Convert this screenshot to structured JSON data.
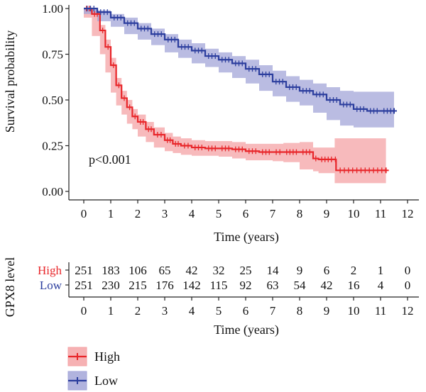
{
  "chart_data": {
    "type": "line",
    "subtype": "kaplan-meier",
    "xlabel": "Time (years)",
    "ylabel": "Survival probability",
    "xlim": [
      0,
      12
    ],
    "ylim": [
      0,
      1
    ],
    "x_ticks": [
      "0",
      "1",
      "2",
      "3",
      "4",
      "5",
      "6",
      "7",
      "8",
      "9",
      "10",
      "11",
      "12"
    ],
    "y_ticks": [
      "0.00",
      "0.25",
      "0.50",
      "0.75",
      "1.00"
    ],
    "annotation": "p<0.001",
    "legend": {
      "position": "bottom-left",
      "entries": [
        "High",
        "Low"
      ]
    },
    "risk_table": {
      "title": "GPX8 level",
      "xlabel": "Time (years)",
      "time_points": [
        0,
        1,
        2,
        3,
        4,
        5,
        6,
        7,
        8,
        9,
        10,
        11,
        12
      ],
      "rows": [
        {
          "label": "High",
          "values": [
            "251",
            "183",
            "106",
            "65",
            "42",
            "32",
            "25",
            "14",
            "9",
            "6",
            "2",
            "1",
            "0"
          ]
        },
        {
          "label": "Low",
          "values": [
            "251",
            "230",
            "215",
            "176",
            "142",
            "115",
            "92",
            "63",
            "54",
            "42",
            "16",
            "4",
            "0"
          ]
        }
      ]
    },
    "series": [
      {
        "name": "High",
        "color": "#e8262a",
        "band_color": "#f4a3a6",
        "x": [
          0,
          0.3,
          0.6,
          0.8,
          1.0,
          1.2,
          1.4,
          1.6,
          1.8,
          2.0,
          2.3,
          2.6,
          3.0,
          3.3,
          3.6,
          4.0,
          4.5,
          5.0,
          5.5,
          6.0,
          6.5,
          7.0,
          7.4,
          8.0,
          8.5,
          8.7,
          9.3,
          9.35,
          11.2
        ],
        "y": [
          1.0,
          0.97,
          0.88,
          0.79,
          0.69,
          0.58,
          0.51,
          0.46,
          0.41,
          0.38,
          0.34,
          0.31,
          0.28,
          0.26,
          0.25,
          0.24,
          0.235,
          0.235,
          0.23,
          0.22,
          0.215,
          0.215,
          0.215,
          0.215,
          0.18,
          0.175,
          0.175,
          0.115,
          0.115
        ],
        "lower": [
          1.0,
          0.95,
          0.85,
          0.75,
          0.65,
          0.54,
          0.47,
          0.42,
          0.37,
          0.34,
          0.3,
          0.27,
          0.24,
          0.22,
          0.21,
          0.2,
          0.195,
          0.195,
          0.19,
          0.18,
          0.17,
          0.17,
          0.165,
          0.16,
          0.12,
          0.11,
          0.1,
          0.045,
          0.045
        ],
        "upper": [
          1.0,
          0.99,
          0.91,
          0.83,
          0.73,
          0.62,
          0.55,
          0.5,
          0.45,
          0.42,
          0.38,
          0.35,
          0.32,
          0.3,
          0.29,
          0.28,
          0.275,
          0.275,
          0.27,
          0.26,
          0.26,
          0.26,
          0.265,
          0.27,
          0.24,
          0.24,
          0.29,
          0.29,
          0.29
        ]
      },
      {
        "name": "Low",
        "color": "#2c3e9e",
        "band_color": "#a3a6d8",
        "x": [
          0,
          0.5,
          1.0,
          1.5,
          2.0,
          2.5,
          3.0,
          3.5,
          4.0,
          4.5,
          5.0,
          5.5,
          6.0,
          6.5,
          7.0,
          7.5,
          8.0,
          8.5,
          9.0,
          9.5,
          10.0,
          10.5,
          11.0,
          11.5
        ],
        "y": [
          1.0,
          0.98,
          0.95,
          0.92,
          0.89,
          0.86,
          0.83,
          0.79,
          0.77,
          0.74,
          0.72,
          0.7,
          0.67,
          0.64,
          0.6,
          0.57,
          0.55,
          0.53,
          0.5,
          0.475,
          0.45,
          0.44,
          0.44,
          0.44
        ],
        "lower": [
          1.0,
          0.97,
          0.93,
          0.9,
          0.86,
          0.83,
          0.8,
          0.76,
          0.73,
          0.7,
          0.68,
          0.65,
          0.62,
          0.59,
          0.55,
          0.52,
          0.49,
          0.47,
          0.43,
          0.39,
          0.36,
          0.35,
          0.35,
          0.35
        ],
        "upper": [
          1.0,
          0.99,
          0.97,
          0.95,
          0.92,
          0.89,
          0.86,
          0.83,
          0.81,
          0.78,
          0.76,
          0.74,
          0.72,
          0.69,
          0.66,
          0.63,
          0.61,
          0.59,
          0.57,
          0.55,
          0.545,
          0.545,
          0.545,
          0.545
        ]
      }
    ]
  }
}
